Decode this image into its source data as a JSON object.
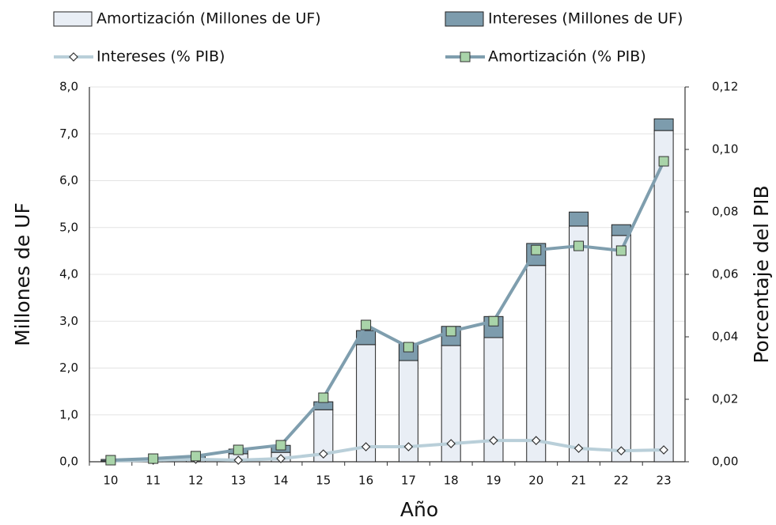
{
  "chart_data": {
    "type": "bar",
    "stacked": true,
    "categories": [
      "10",
      "11",
      "12",
      "13",
      "14",
      "15",
      "16",
      "17",
      "18",
      "19",
      "20",
      "21",
      "22",
      "23"
    ],
    "x_label": "Año",
    "y_label": "Millones de UF",
    "y2_label": "Porcentaje del PIB",
    "ylim": [
      0,
      8
    ],
    "yticks": [
      {
        "value": 0,
        "label": "0,0"
      },
      {
        "value": 1,
        "label": "1,0"
      },
      {
        "value": 2,
        "label": "2,0"
      },
      {
        "value": 3,
        "label": "3,0"
      },
      {
        "value": 4,
        "label": "4,0"
      },
      {
        "value": 5,
        "label": "5,0"
      },
      {
        "value": 6,
        "label": "6,0"
      },
      {
        "value": 7,
        "label": "7,0"
      },
      {
        "value": 8,
        "label": "8,0"
      }
    ],
    "y2lim": [
      0,
      0.12
    ],
    "y2ticks": [
      {
        "value": 0,
        "label": "0,00"
      },
      {
        "value": 0.02,
        "label": "0,02"
      },
      {
        "value": 0.04,
        "label": "0,04"
      },
      {
        "value": 0.06,
        "label": "0,06"
      },
      {
        "value": 0.08,
        "label": "0,08"
      },
      {
        "value": 0.1,
        "label": "0,10"
      },
      {
        "value": 0.12,
        "label": "0,12"
      }
    ],
    "grid": true,
    "series": [
      {
        "name": "Amortización (Millones de UF)",
        "type": "bar",
        "color": "#e9eef5",
        "values": [
          0.02,
          0.04,
          0.07,
          0.17,
          0.2,
          1.11,
          2.5,
          2.16,
          2.48,
          2.65,
          4.19,
          5.03,
          4.83,
          7.07
        ]
      },
      {
        "name": "Intereses (Millones de UF)",
        "type": "bar",
        "color": "#7d9cad",
        "values": [
          0.03,
          0.04,
          0.05,
          0.1,
          0.15,
          0.17,
          0.3,
          0.37,
          0.41,
          0.45,
          0.47,
          0.3,
          0.23,
          0.25
        ]
      },
      {
        "name": "Intereses (% PIB)",
        "type": "line",
        "axis": "y2",
        "color": "#b9cfd9",
        "marker": "diamond",
        "marker_color": "#ffffff",
        "values": [
          0.0003,
          0.0005,
          0.0008,
          0.0005,
          0.001,
          0.0025,
          0.0048,
          0.0048,
          0.0058,
          0.0068,
          0.0068,
          0.0043,
          0.0035,
          0.0038
        ]
      },
      {
        "name": "Amortización (% PIB)",
        "type": "line",
        "axis": "y2",
        "color": "#7f9eae",
        "marker": "square",
        "marker_color": "#a9d4a9",
        "values": [
          0.0005,
          0.001,
          0.0018,
          0.0038,
          0.0053,
          0.0205,
          0.0438,
          0.0367,
          0.0418,
          0.045,
          0.0678,
          0.0691,
          0.0676,
          0.0962
        ]
      }
    ]
  }
}
